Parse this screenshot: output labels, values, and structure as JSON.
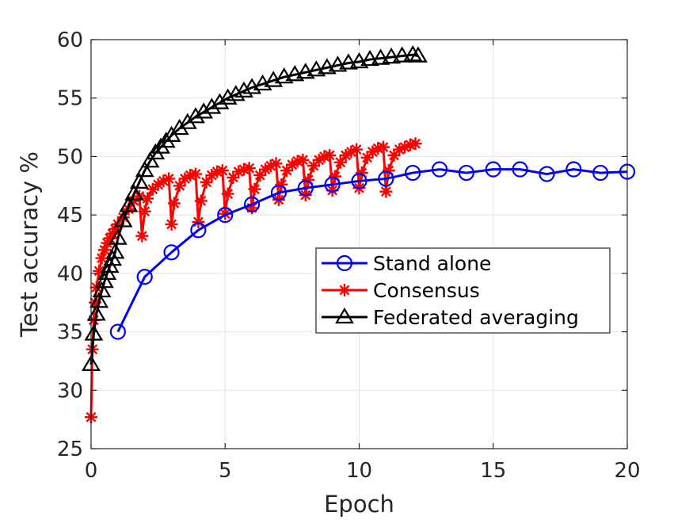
{
  "chart_data": {
    "type": "line",
    "xlabel": "Epoch",
    "ylabel": "Test accuracy %",
    "xlim": [
      0,
      20
    ],
    "ylim": [
      25,
      60
    ],
    "xticks": [
      0,
      5,
      10,
      15,
      20
    ],
    "yticks": [
      25,
      30,
      35,
      40,
      45,
      50,
      55,
      60
    ],
    "grid": true,
    "legend_position": "center-right",
    "series": [
      {
        "name": "Stand alone",
        "color": "#0000ff",
        "marker": "circle",
        "x": [
          1,
          2,
          3,
          4,
          5,
          6,
          7,
          8,
          9,
          10,
          11,
          12,
          13,
          14,
          15,
          16,
          17,
          18,
          19,
          20
        ],
        "y": [
          35.0,
          39.7,
          41.8,
          43.7,
          45.0,
          45.9,
          46.9,
          47.3,
          47.6,
          47.9,
          48.1,
          48.6,
          48.9,
          48.6,
          48.9,
          48.9,
          48.5,
          48.9,
          48.6,
          48.7
        ]
      },
      {
        "name": "Consensus",
        "color": "#ff0000",
        "marker": "asterisk",
        "x": [
          0,
          0.05,
          0.1,
          0.15,
          0.2,
          0.3,
          0.4,
          0.5,
          0.6,
          0.7,
          0.8,
          0.9,
          1.0,
          1.2,
          1.4,
          1.6,
          1.8,
          1.9,
          2.0,
          2.1,
          2.3,
          2.5,
          2.7,
          2.9,
          3.0,
          3.1,
          3.3,
          3.5,
          3.7,
          3.9,
          4.0,
          4.1,
          4.3,
          4.5,
          4.7,
          4.9,
          5.0,
          5.1,
          5.3,
          5.5,
          5.7,
          5.9,
          6.0,
          6.1,
          6.3,
          6.5,
          6.7,
          6.9,
          7.0,
          7.1,
          7.3,
          7.5,
          7.7,
          7.9,
          8.0,
          8.1,
          8.3,
          8.5,
          8.7,
          8.9,
          9.0,
          9.1,
          9.3,
          9.5,
          9.7,
          9.9,
          10.0,
          10.1,
          10.3,
          10.5,
          10.7,
          10.9,
          11.0,
          11.1,
          11.3,
          11.5,
          11.7,
          11.9,
          12.1
        ],
        "y": [
          27.7,
          33.5,
          36.0,
          37.5,
          38.8,
          40.2,
          41.3,
          42.0,
          42.6,
          43.0,
          43.4,
          43.8,
          44.2,
          44.8,
          45.5,
          46.2,
          46.6,
          43.2,
          45.3,
          46.4,
          47.2,
          47.6,
          47.9,
          48.1,
          44.2,
          46.0,
          47.5,
          48.1,
          48.4,
          48.5,
          44.4,
          46.2,
          47.8,
          48.4,
          48.7,
          48.8,
          45.1,
          46.8,
          48.2,
          48.7,
          48.9,
          49.0,
          45.6,
          47.2,
          48.4,
          48.9,
          49.2,
          49.4,
          46.3,
          47.6,
          48.8,
          49.3,
          49.6,
          49.7,
          46.7,
          48.0,
          49.2,
          49.7,
          50.0,
          50.1,
          47.1,
          48.3,
          49.5,
          50.1,
          50.4,
          50.6,
          47.3,
          48.6,
          49.9,
          50.4,
          50.7,
          50.8,
          47.0,
          48.8,
          50.1,
          50.6,
          50.8,
          51.0,
          51.1
        ]
      },
      {
        "name": "Federated averaging",
        "color": "#000000",
        "marker": "triangle",
        "x": [
          0,
          0.1,
          0.2,
          0.3,
          0.4,
          0.5,
          0.6,
          0.7,
          0.8,
          0.9,
          1.0,
          1.2,
          1.4,
          1.6,
          1.8,
          2.0,
          2.2,
          2.4,
          2.6,
          2.8,
          3.0,
          3.3,
          3.6,
          3.9,
          4.2,
          4.5,
          4.8,
          5.1,
          5.4,
          5.7,
          6.0,
          6.4,
          6.8,
          7.2,
          7.6,
          8.0,
          8.4,
          8.8,
          9.2,
          9.6,
          10.0,
          10.4,
          10.8,
          11.2,
          11.6,
          12.0,
          12.2
        ],
        "y": [
          32.2,
          34.8,
          36.5,
          37.6,
          38.5,
          39.3,
          40.0,
          40.6,
          41.2,
          41.8,
          43.0,
          44.5,
          45.8,
          46.8,
          47.8,
          48.8,
          49.6,
          50.3,
          50.8,
          51.3,
          51.8,
          52.4,
          52.9,
          53.4,
          53.8,
          54.2,
          54.6,
          55.0,
          55.3,
          55.6,
          55.9,
          56.2,
          56.5,
          56.8,
          57.0,
          57.2,
          57.4,
          57.6,
          57.8,
          58.0,
          58.1,
          58.3,
          58.4,
          58.5,
          58.6,
          58.7,
          58.6
        ]
      }
    ]
  }
}
